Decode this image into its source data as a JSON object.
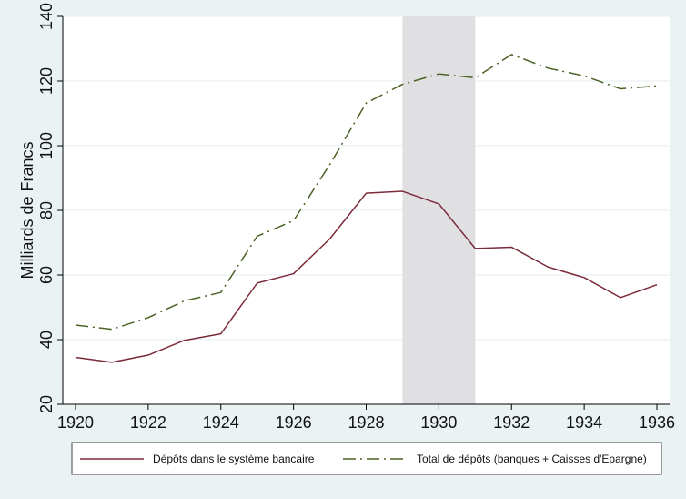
{
  "chart_data": {
    "type": "line",
    "title": "",
    "xlabel": "",
    "ylabel": "Milliards de Francs",
    "xlim": [
      1920,
      1936
    ],
    "ylim": [
      20,
      140
    ],
    "x_ticks": [
      1920,
      1922,
      1924,
      1926,
      1928,
      1930,
      1932,
      1934,
      1936
    ],
    "y_ticks": [
      20,
      40,
      60,
      80,
      100,
      120,
      140
    ],
    "grid": "horizontal",
    "shaded_region": {
      "from": 1929,
      "to": 1931,
      "color": "#e0e0e3"
    },
    "x": [
      1920,
      1921,
      1922,
      1923,
      1924,
      1925,
      1926,
      1927,
      1928,
      1929,
      1930,
      1931,
      1932,
      1933,
      1934,
      1935,
      1936
    ],
    "series": [
      {
        "name": "Dépôts dans le système bancaire",
        "color": "#7b2b3a",
        "dash": "solid",
        "values": [
          34.5,
          33.0,
          35.2,
          39.8,
          41.8,
          57.5,
          60.4,
          71.2,
          85.3,
          85.9,
          82.0,
          68.2,
          68.6,
          62.5,
          59.2,
          53.0,
          57.0
        ]
      },
      {
        "name": "Total de dépôts (banques + Caisses d'Epargne)",
        "color": "#4b6226",
        "dash": "dashdot",
        "values": [
          44.5,
          43.2,
          46.8,
          52.0,
          54.6,
          72.0,
          76.8,
          94.2,
          113.2,
          119.0,
          122.2,
          121.0,
          128.2,
          124.0,
          121.6,
          117.6,
          118.5
        ]
      }
    ],
    "legend_position": "bottom"
  }
}
